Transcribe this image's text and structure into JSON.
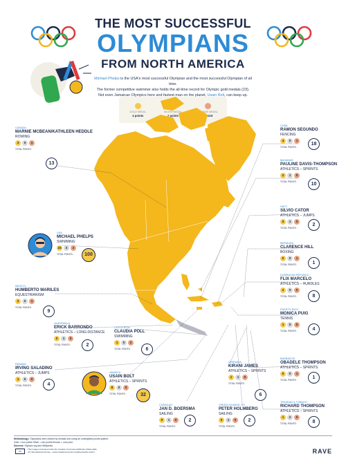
{
  "header": {
    "line1": "THE MOST SUCCESSFUL",
    "line2": "OLYMPIANS",
    "line3": "FROM NORTH AMERICA"
  },
  "intro": {
    "name": "Michael Phelps",
    "text1": " is the USA's most successful Olympian and the most successful Olympian of all time.",
    "text2": "The former competitive swimmer also holds the all-time record for Olympic gold medals (23).",
    "text3": "Not even Jamaican Olympics here and fastest man on the planet, ",
    "bolt": "Usain Bolt",
    "text4": ", can keep up."
  },
  "legend": {
    "gold_label": "GOLD MEDAL",
    "gold_points": "4 points",
    "silver_label": "SILVER MEDAL",
    "silver_points": "2 points",
    "bronze_label": "BRONZE MEDAL",
    "bronze_points": "1 point"
  },
  "total_label": "TOTAL POINTS:",
  "colors": {
    "map": "#f4b71c",
    "blue": "#2e8bd6",
    "navy": "#1d2a4a",
    "gold": "#f7c948",
    "silver": "#d8d8d8",
    "bronze": "#e7a37e"
  },
  "athletes": {
    "mcbean": {
      "country": "CANADA",
      "name": "MARNIE MCBEAN/KATHLEEN HEDDLE",
      "sport": "ROWING",
      "gold": "3",
      "silver": "0",
      "bronze": "1",
      "total": "13"
    },
    "segundo": {
      "country": "CUBA",
      "name": "RAMON SEGUNDO",
      "sport": "FENCING",
      "gold": "4",
      "silver": "0",
      "bronze": "1",
      "total": "18"
    },
    "davis": {
      "country": "BAHAMAS",
      "name": "PAULINE DAVIS-THOMPSON",
      "sport": "ATHLETICS – SPRINTS",
      "gold": "2",
      "silver": "1",
      "bronze": "0",
      "total": "10"
    },
    "cator": {
      "country": "HAITI",
      "name": "SILVIO CATOR",
      "sport": "ATHLETICS – JUMPS",
      "gold": "0",
      "silver": "1",
      "bronze": "0",
      "total": "2"
    },
    "phelps": {
      "country": "USA",
      "name": "MICHAEL PHELPS",
      "sport": "SWIMMING",
      "gold": "23",
      "silver": "3",
      "bronze": "2",
      "total": "100"
    },
    "hill": {
      "country": "BERMUDA",
      "name": "CLARENCE HILL",
      "sport": "BOXING",
      "gold": "0",
      "silver": "0",
      "bronze": "1",
      "total": "1"
    },
    "marcelo": {
      "country": "DOMINICAN REPUBLIC",
      "name": "FLIX MARCELO",
      "sport": "ATHLETICS – HURDLES",
      "gold": "2",
      "silver": "0",
      "bronze": "0",
      "total": "8"
    },
    "mariles": {
      "country": "MEXICO",
      "name": "HUMBERTO MARILES",
      "sport": "EQUESTRIANISM",
      "gold": "2",
      "silver": "0",
      "bronze": "1",
      "total": "9"
    },
    "puig": {
      "country": "PUERTO RICO",
      "name": "MONICA PUIG",
      "sport": "TENNIS",
      "gold": "1",
      "silver": "0",
      "bronze": "0",
      "total": "4"
    },
    "barrondo": {
      "country": "GUATEMALA",
      "name": "ERICK BARRONDO",
      "sport": "ATHLETICS – LONG-DISTANCE",
      "gold": "0",
      "silver": "1",
      "bronze": "0",
      "total": "2"
    },
    "poll": {
      "country": "COSTA RICA",
      "name": "CLAUDIA POLL",
      "sport": "SWIMMING",
      "gold": "1",
      "silver": "0",
      "bronze": "2",
      "total": "6"
    },
    "othompson": {
      "country": "BARBADOS",
      "name": "OBADELE THOMPSON",
      "sport": "ATHLETICS – SPRINTS",
      "gold": "0",
      "silver": "0",
      "bronze": "1",
      "total": "1"
    },
    "saladino": {
      "country": "PANAMA",
      "name": "IRVING SALADINO",
      "sport": "ATHLETICS – JUMPS",
      "gold": "1",
      "silver": "0",
      "bronze": "0",
      "total": "4"
    },
    "james": {
      "country": "GRENADA",
      "name": "KIRANI JAMES",
      "sport": "ATHLETICS – SPRINTS",
      "gold": "1",
      "silver": "1",
      "bronze": "0",
      "total": "6"
    },
    "bolt": {
      "country": "JAMAICA",
      "name": "USAIN BOLT",
      "sport": "ATHLETICS – SPRINTS",
      "gold": "8",
      "silver": "0",
      "bronze": "0",
      "total": "32"
    },
    "boersma": {
      "country": "CURAÇAO",
      "name": "JAN D. BOERSMA",
      "sport": "SAILING",
      "gold": "0",
      "silver": "1",
      "bronze": "0",
      "total": "2"
    },
    "holmberg": {
      "country": "VIRGIN ISLANDS, US",
      "name": "PETER HOLMBERG",
      "sport": "SAILING",
      "gold": "0",
      "silver": "1",
      "bronze": "0",
      "total": "2"
    },
    "rthompson": {
      "country": "TRINIDAD & TOBAGO",
      "name": "RICHARD THOMPSON",
      "sport": "ATHLETICS – SPRINTS",
      "gold": "1",
      "silver": "2",
      "bronze": "0",
      "total": "8"
    }
  },
  "footer": {
    "methodology_label": "Methodology:",
    "methodology": " Olympians were ranked by medals won using an unweighted points system:",
    "points_line": "Gold = four points   Silver = two points   Bronze = one point",
    "sources_label": "Sources:",
    "sources": " Olympic.org and Wikipedia.",
    "credit1": "This image is licensed under the Creative Commons Attribution-Share Alike",
    "credit2": "4.0 International License – www.creativecommons.org/licenses/by-sa/4.0",
    "cc": "cc",
    "brand": "RAVE"
  }
}
